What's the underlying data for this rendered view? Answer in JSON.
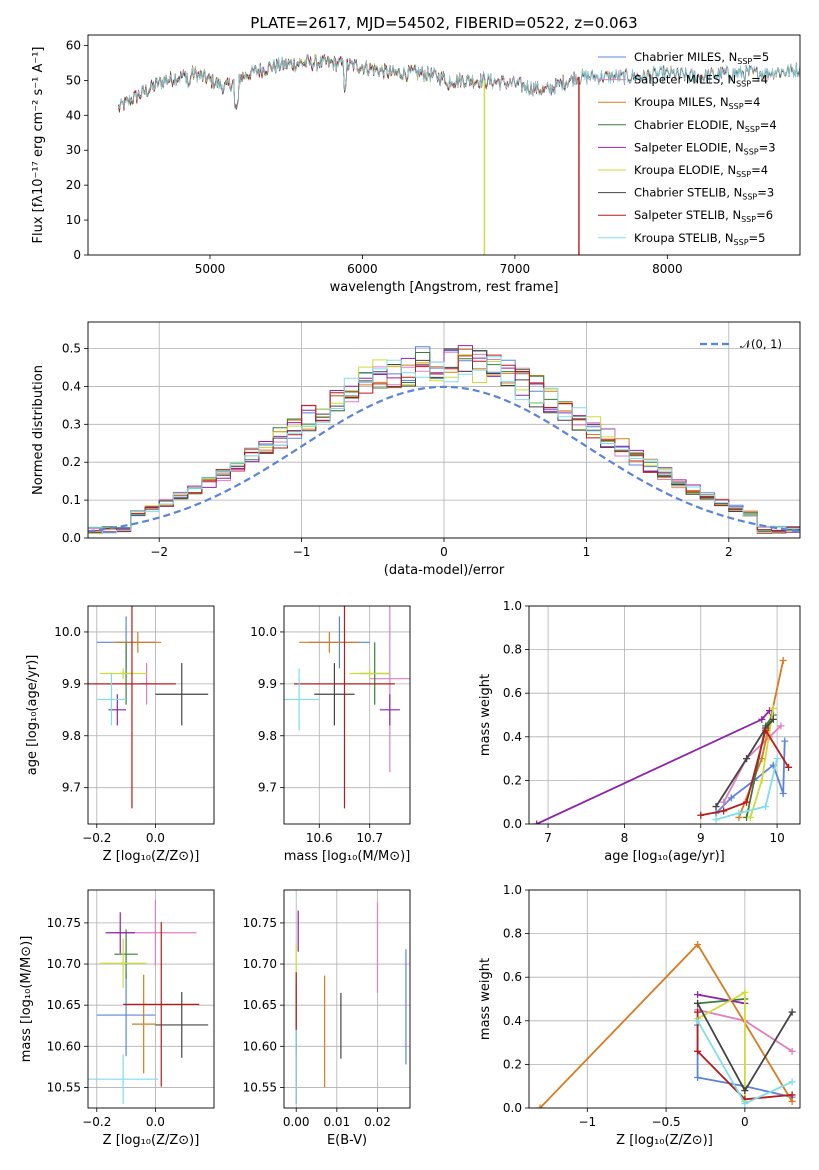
{
  "chart_data": [
    {
      "id": "spectrum",
      "type": "line",
      "title": "PLATE=2617, MJD=54502, FIBERID=0522, z=0.063",
      "xlabel": "wavelength [Angstrom, rest frame]",
      "ylabel": "Flux [fλ10⁻¹⁷ erg cm⁻² s⁻¹ A⁻¹]",
      "xlim": [
        4200,
        8870
      ],
      "ylim": [
        0,
        63
      ],
      "xticks": [
        5000,
        6000,
        7000,
        8000
      ],
      "yticks": [
        0,
        10,
        20,
        30,
        40,
        50,
        60
      ],
      "legend_position": "top-right",
      "continuum_points": [
        [
          4400,
          42
        ],
        [
          4500,
          45
        ],
        [
          4700,
          50
        ],
        [
          4900,
          52
        ],
        [
          5100,
          48
        ],
        [
          5200,
          51
        ],
        [
          5400,
          54
        ],
        [
          5600,
          55
        ],
        [
          5800,
          55
        ],
        [
          6000,
          54
        ],
        [
          6200,
          52
        ],
        [
          6400,
          52
        ],
        [
          6600,
          50
        ],
        [
          6800,
          50
        ],
        [
          7000,
          49
        ],
        [
          7200,
          47
        ],
        [
          7400,
          51
        ],
        [
          7600,
          51
        ],
        [
          7800,
          51
        ],
        [
          8000,
          52
        ],
        [
          8200,
          51
        ],
        [
          8400,
          52
        ],
        [
          8600,
          52
        ],
        [
          8870,
          53
        ]
      ],
      "dropouts": [
        {
          "series": "Kroupa ELODIE",
          "x": 6800,
          "ymin": 0
        },
        {
          "series": "Salpeter STELIB",
          "x": 7420,
          "ymin": 0
        }
      ],
      "series": [
        {
          "name": "Chabrier MILES",
          "nssp": "5",
          "color": "#5b84d8",
          "xmax": 8870
        },
        {
          "name": "Salpeter MILES",
          "nssp": "4",
          "color": "#e07ec0",
          "xmax": 8870
        },
        {
          "name": "Kroupa MILES",
          "nssp": "4",
          "color": "#d97b20",
          "xmax": 8870
        },
        {
          "name": "Chabrier ELODIE",
          "nssp": "4",
          "color": "#3a7d3a",
          "xmax": 6800
        },
        {
          "name": "Salpeter ELODIE",
          "nssp": "3",
          "color": "#8e24aa",
          "xmax": 6800
        },
        {
          "name": "Kroupa ELODIE",
          "nssp": "4",
          "color": "#cddc39",
          "xmax": 6800
        },
        {
          "name": "Chabrier STELIB",
          "nssp": "3",
          "color": "#444444",
          "xmax": 8870
        },
        {
          "name": "Salpeter STELIB",
          "nssp": "6",
          "color": "#b71c1c",
          "xmax": 7420
        },
        {
          "name": "Kroupa STELIB",
          "nssp": "5",
          "color": "#80deea",
          "xmax": 8870
        }
      ]
    },
    {
      "id": "residuals",
      "type": "histogram",
      "xlabel": "(data-model)/error",
      "ylabel": "Normed distribution",
      "xlim": [
        -2.5,
        2.5
      ],
      "ylim": [
        0,
        0.57
      ],
      "xticks": [
        -2,
        -1,
        0,
        1,
        2
      ],
      "yticks": [
        0.0,
        0.1,
        0.2,
        0.3,
        0.4,
        0.5
      ],
      "bin_width": 0.1,
      "reference_curve": {
        "name": "𝒩(0, 1)",
        "mean": 0,
        "sigma": 1,
        "color": "#5b84d8",
        "style": "dashed"
      },
      "legend_position": "top-right",
      "note": "one normalized histogram per series (same 9 series as the spectrum panel); peak near 0.45-0.53"
    },
    {
      "id": "age-vs-Z",
      "type": "errorbar",
      "xlabel": "Z [log₁₀(Z/Z⊙)]",
      "ylabel": "age  [log₁₀(age/yr)]",
      "xlim": [
        -0.23,
        0.2
      ],
      "ylim": [
        9.63,
        10.05
      ],
      "xticks": [
        -0.2,
        0.0
      ],
      "yticks": [
        9.7,
        9.8,
        9.9,
        10.0
      ],
      "points": [
        {
          "series": "Chabrier MILES",
          "x": -0.1,
          "xerr": 0.1,
          "y": 9.98,
          "yerr": 0.05
        },
        {
          "series": "Salpeter MILES",
          "x": -0.03,
          "xerr": 0.02,
          "y": 9.9,
          "yerr": 0.04
        },
        {
          "series": "Kroupa MILES",
          "x": -0.06,
          "xerr": 0.08,
          "y": 9.98,
          "yerr": 0.02
        },
        {
          "series": "Chabrier ELODIE",
          "x": -0.1,
          "xerr": 0.02,
          "y": 9.92,
          "yerr": 0.06
        },
        {
          "series": "Salpeter ELODIE",
          "x": -0.13,
          "xerr": 0.03,
          "y": 9.85,
          "yerr": 0.03
        },
        {
          "series": "Kroupa ELODIE",
          "x": -0.11,
          "xerr": 0.08,
          "y": 9.92,
          "yerr": 0.01
        },
        {
          "series": "Chabrier STELIB",
          "x": 0.09,
          "xerr": 0.09,
          "y": 9.88,
          "yerr": 0.06
        },
        {
          "series": "Salpeter STELIB",
          "x": -0.08,
          "xerr": 0.15,
          "y": 9.9,
          "yerr": 0.24
        },
        {
          "series": "Kroupa STELIB",
          "x": -0.15,
          "xerr": 0.05,
          "y": 9.87,
          "yerr": 0.05
        }
      ]
    },
    {
      "id": "age-vs-mass",
      "type": "errorbar",
      "xlabel": "mass [log₁₀(M/M⊙)]",
      "xlim": [
        10.53,
        10.78
      ],
      "ylim": [
        9.63,
        10.05
      ],
      "xticks": [
        10.6,
        10.7
      ],
      "yticks": [
        9.7,
        9.8,
        9.9,
        10.0
      ],
      "points": [
        {
          "series": "Chabrier MILES",
          "x": 10.64,
          "xerr": 0.06,
          "y": 9.98,
          "yerr": 0.05
        },
        {
          "series": "Salpeter MILES",
          "x": 10.74,
          "xerr": 0.04,
          "y": 9.91,
          "yerr": 0.18
        },
        {
          "series": "Kroupa MILES",
          "x": 10.62,
          "xerr": 0.06,
          "y": 9.98,
          "yerr": 0.02
        },
        {
          "series": "Chabrier ELODIE",
          "x": 10.71,
          "xerr": 0.03,
          "y": 9.92,
          "yerr": 0.06
        },
        {
          "series": "Salpeter ELODIE",
          "x": 10.74,
          "xerr": 0.02,
          "y": 9.85,
          "yerr": 0.03
        },
        {
          "series": "Kroupa ELODIE",
          "x": 10.7,
          "xerr": 0.04,
          "y": 9.92,
          "yerr": 0.01
        },
        {
          "series": "Chabrier STELIB",
          "x": 10.63,
          "xerr": 0.04,
          "y": 9.88,
          "yerr": 0.06
        },
        {
          "series": "Salpeter STELIB",
          "x": 10.65,
          "xerr": 0.1,
          "y": 9.9,
          "yerr": 0.24
        },
        {
          "series": "Kroupa STELIB",
          "x": 10.56,
          "xerr": 0.04,
          "y": 9.87,
          "yerr": 0.06
        }
      ]
    },
    {
      "id": "mass-weight-vs-age",
      "type": "line",
      "xlabel": "age  [log₁₀(age/yr)]",
      "ylabel": "mass weight",
      "xlim": [
        6.75,
        10.3
      ],
      "ylim": [
        0,
        1
      ],
      "xticks": [
        7,
        8,
        9,
        10
      ],
      "yticks": [
        0.0,
        0.2,
        0.4,
        0.6,
        0.8,
        1.0
      ],
      "series": [
        {
          "name": "Chabrier MILES",
          "points": [
            [
              9.2,
              0.05
            ],
            [
              9.4,
              0.12
            ],
            [
              9.7,
              0.2
            ],
            [
              9.95,
              0.27
            ],
            [
              10.08,
              0.14
            ],
            [
              10.1,
              0.38
            ]
          ]
        },
        {
          "name": "Salpeter MILES",
          "points": [
            [
              9.3,
              0.1
            ],
            [
              9.6,
              0.3
            ],
            [
              9.9,
              0.4
            ],
            [
              10.05,
              0.45
            ]
          ]
        },
        {
          "name": "Kroupa MILES",
          "points": [
            [
              9.5,
              0.03
            ],
            [
              9.8,
              0.3
            ],
            [
              10.08,
              0.75
            ]
          ]
        },
        {
          "name": "Chabrier ELODIE",
          "points": [
            [
              9.6,
              0.03
            ],
            [
              9.85,
              0.45
            ],
            [
              9.95,
              0.5
            ]
          ]
        },
        {
          "name": "Salpeter ELODIE",
          "points": [
            [
              6.85,
              0.0
            ],
            [
              9.8,
              0.48
            ],
            [
              9.9,
              0.52
            ]
          ]
        },
        {
          "name": "Kroupa ELODIE",
          "points": [
            [
              9.65,
              0.03
            ],
            [
              9.8,
              0.2
            ],
            [
              9.95,
              0.53
            ]
          ]
        },
        {
          "name": "Chabrier STELIB",
          "points": [
            [
              9.2,
              0.08
            ],
            [
              9.6,
              0.3
            ],
            [
              9.85,
              0.44
            ],
            [
              9.95,
              0.48
            ]
          ]
        },
        {
          "name": "Salpeter STELIB",
          "points": [
            [
              9.0,
              0.04
            ],
            [
              9.3,
              0.06
            ],
            [
              9.6,
              0.1
            ],
            [
              9.85,
              0.43
            ],
            [
              10.15,
              0.26
            ]
          ]
        },
        {
          "name": "Kroupa STELIB",
          "points": [
            [
              9.2,
              0.02
            ],
            [
              9.5,
              0.05
            ],
            [
              9.85,
              0.08
            ],
            [
              10.0,
              0.3
            ]
          ]
        }
      ]
    },
    {
      "id": "mass-vs-Z",
      "type": "errorbar",
      "xlabel": "Z [log₁₀(Z/Z⊙)]",
      "ylabel": "mass [log₁₀(M/M⊙)]",
      "xlim": [
        -0.23,
        0.2
      ],
      "ylim": [
        10.525,
        10.79
      ],
      "xticks": [
        -0.2,
        0.0
      ],
      "yticks": [
        10.55,
        10.6,
        10.65,
        10.7,
        10.75
      ],
      "points": [
        {
          "series": "Chabrier MILES",
          "x": -0.1,
          "xerr": 0.1,
          "y": 10.638,
          "yerr": 0.05
        },
        {
          "series": "Salpeter MILES",
          "x": 0.0,
          "xerr": 0.14,
          "y": 10.738,
          "yerr": 0.04
        },
        {
          "series": "Kroupa MILES",
          "x": -0.04,
          "xerr": 0.04,
          "y": 10.627,
          "yerr": 0.06
        },
        {
          "series": "Chabrier ELODIE",
          "x": -0.1,
          "xerr": 0.04,
          "y": 10.712,
          "yerr": 0.03
        },
        {
          "series": "Salpeter ELODIE",
          "x": -0.12,
          "xerr": 0.05,
          "y": 10.738,
          "yerr": 0.025
        },
        {
          "series": "Kroupa ELODIE",
          "x": -0.11,
          "xerr": 0.08,
          "y": 10.701,
          "yerr": 0.03
        },
        {
          "series": "Chabrier STELIB",
          "x": 0.09,
          "xerr": 0.09,
          "y": 10.626,
          "yerr": 0.04
        },
        {
          "series": "Salpeter STELIB",
          "x": 0.02,
          "xerr": 0.13,
          "y": 10.651,
          "yerr": 0.1
        },
        {
          "series": "Kroupa STELIB",
          "x": -0.11,
          "xerr": 0.12,
          "y": 10.56,
          "yerr": 0.03
        }
      ]
    },
    {
      "id": "mass-vs-EBV",
      "type": "errorbar",
      "xlabel": "E(B-V)",
      "xlim": [
        -0.003,
        0.028
      ],
      "ylim": [
        10.525,
        10.79
      ],
      "xticks": [
        0.0,
        0.01,
        0.02
      ],
      "yticks": [
        10.55,
        10.6,
        10.65,
        10.7,
        10.75
      ],
      "points": [
        {
          "series": "Chabrier MILES",
          "x": 0.027,
          "y": 10.648,
          "yerr": 0.07
        },
        {
          "series": "Salpeter MILES",
          "x": 0.02,
          "y": 10.72,
          "yerr": 0.055
        },
        {
          "series": "Kroupa MILES",
          "x": 0.007,
          "y": 10.618,
          "yerr": 0.068
        },
        {
          "series": "Chabrier ELODIE",
          "x": 0.0,
          "y": 10.64,
          "yerr": 0.05
        },
        {
          "series": "Salpeter ELODIE",
          "x": 0.0005,
          "y": 10.74,
          "yerr": 0.025
        },
        {
          "series": "Kroupa ELODIE",
          "x": 0.0,
          "y": 10.7,
          "yerr": 0.025
        },
        {
          "series": "Chabrier STELIB",
          "x": 0.011,
          "y": 10.625,
          "yerr": 0.04
        },
        {
          "series": "Salpeter STELIB",
          "x": 0.0,
          "y": 10.61,
          "yerr": 0.08
        },
        {
          "series": "Kroupa STELIB",
          "x": 0.0,
          "y": 10.575,
          "yerr": 0.045
        }
      ]
    },
    {
      "id": "mass-weight-vs-Z",
      "type": "line",
      "xlabel": "Z [log₁₀(Z/Z⊙)]",
      "ylabel": "mass weight",
      "xlim": [
        -1.37,
        0.35
      ],
      "ylim": [
        0,
        1
      ],
      "xticks": [
        -1.0,
        -0.5,
        0.0
      ],
      "yticks": [
        0.0,
        0.2,
        0.4,
        0.6,
        0.8,
        1.0
      ],
      "series": [
        {
          "name": "Chabrier MILES",
          "points": [
            [
              -0.3,
              0.38
            ],
            [
              -0.3,
              0.14
            ],
            [
              0.0,
              0.1
            ],
            [
              0.3,
              0.05
            ]
          ]
        },
        {
          "name": "Salpeter MILES",
          "points": [
            [
              -0.3,
              0.45
            ],
            [
              0.0,
              0.4
            ],
            [
              0.3,
              0.26
            ]
          ]
        },
        {
          "name": "Kroupa MILES",
          "points": [
            [
              -1.3,
              0.0
            ],
            [
              -0.3,
              0.75
            ],
            [
              0.3,
              0.03
            ]
          ]
        },
        {
          "name": "Chabrier ELODIE",
          "points": [
            [
              -0.3,
              0.48
            ],
            [
              0.0,
              0.5
            ]
          ]
        },
        {
          "name": "Salpeter ELODIE",
          "points": [
            [
              -0.3,
              0.52
            ],
            [
              0.0,
              0.48
            ]
          ]
        },
        {
          "name": "Kroupa ELODIE",
          "points": [
            [
              -0.3,
              0.41
            ],
            [
              0.0,
              0.53
            ],
            [
              0.0,
              0.03
            ]
          ]
        },
        {
          "name": "Chabrier STELIB",
          "points": [
            [
              -0.3,
              0.48
            ],
            [
              0.0,
              0.08
            ],
            [
              0.3,
              0.44
            ]
          ]
        },
        {
          "name": "Salpeter STELIB",
          "points": [
            [
              -0.3,
              0.44
            ],
            [
              -0.3,
              0.26
            ],
            [
              0.0,
              0.04
            ],
            [
              0.3,
              0.06
            ]
          ]
        },
        {
          "name": "Kroupa STELIB",
          "points": [
            [
              -0.3,
              0.4
            ],
            [
              0.0,
              0.02
            ],
            [
              0.3,
              0.12
            ]
          ]
        }
      ]
    }
  ]
}
